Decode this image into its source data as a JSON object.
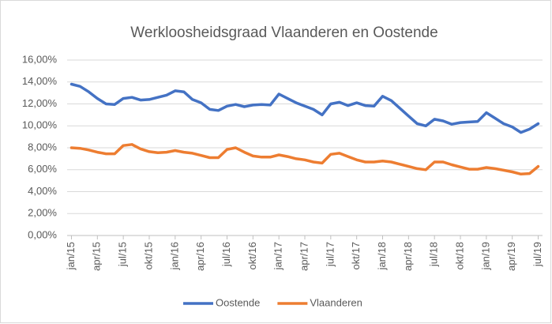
{
  "chart_data": {
    "type": "line",
    "title": "Werkloosheidsgraad Vlaanderen en Oostende",
    "categories": [
      "jan/15",
      null,
      null,
      "apr/15",
      null,
      null,
      "jul/15",
      null,
      null,
      "okt/15",
      null,
      null,
      "jan/16",
      null,
      null,
      "apr/16",
      null,
      null,
      "jul/16",
      null,
      null,
      "okt/16",
      null,
      null,
      "jan/17",
      null,
      null,
      "apr/17",
      null,
      null,
      "jul/17",
      null,
      null,
      "okt/17",
      null,
      null,
      "jan/18",
      null,
      null,
      "apr/18",
      null,
      null,
      "jul/18",
      null,
      null,
      "okt/18",
      null,
      null,
      "jan/19",
      null,
      null,
      "apr/19",
      null,
      null,
      "jul/19"
    ],
    "series": [
      {
        "name": "Oostende",
        "color": "#4472c4",
        "values": [
          13.8,
          13.6,
          13.1,
          12.5,
          12.0,
          11.95,
          12.5,
          12.6,
          12.35,
          12.4,
          12.6,
          12.8,
          13.2,
          13.1,
          12.4,
          12.1,
          11.5,
          11.4,
          11.8,
          11.95,
          11.75,
          11.9,
          11.95,
          11.9,
          12.9,
          12.5,
          12.1,
          11.8,
          11.5,
          11.0,
          12.0,
          12.15,
          11.85,
          12.1,
          11.85,
          11.8,
          12.7,
          12.3,
          11.6,
          10.9,
          10.2,
          10.0,
          10.6,
          10.45,
          10.15,
          10.3,
          10.35,
          10.4,
          11.2,
          10.7,
          10.2,
          9.9,
          9.4,
          9.7,
          10.2
        ]
      },
      {
        "name": "Vlaanderen",
        "color": "#ed7d31",
        "values": [
          8.0,
          7.95,
          7.8,
          7.6,
          7.45,
          7.45,
          8.2,
          8.3,
          7.9,
          7.65,
          7.55,
          7.6,
          7.75,
          7.6,
          7.5,
          7.3,
          7.1,
          7.1,
          7.85,
          8.0,
          7.6,
          7.25,
          7.15,
          7.15,
          7.35,
          7.2,
          7.0,
          6.9,
          6.7,
          6.6,
          7.4,
          7.5,
          7.2,
          6.9,
          6.7,
          6.7,
          6.8,
          6.7,
          6.5,
          6.3,
          6.1,
          6.0,
          6.7,
          6.7,
          6.45,
          6.25,
          6.05,
          6.05,
          6.2,
          6.1,
          5.95,
          5.8,
          5.6,
          5.65,
          6.3
        ]
      }
    ],
    "ylim": [
      0,
      16
    ],
    "yticks": [
      {
        "value": 0,
        "label": "0,00%"
      },
      {
        "value": 2,
        "label": "2,00%"
      },
      {
        "value": 4,
        "label": "4,00%"
      },
      {
        "value": 6,
        "label": "6,00%"
      },
      {
        "value": 8,
        "label": "8,00%"
      },
      {
        "value": 10,
        "label": "10,00%"
      },
      {
        "value": 12,
        "label": "12,00%"
      },
      {
        "value": 14,
        "label": "14,00%"
      },
      {
        "value": 16,
        "label": "16,00%"
      }
    ],
    "grid": true,
    "legend": "bottom"
  }
}
